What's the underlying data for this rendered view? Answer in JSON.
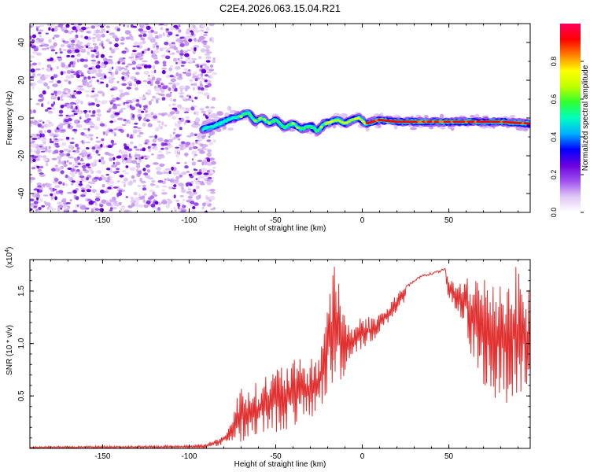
{
  "title": "C2E4.2026.063.15.04.R21",
  "chart_data": [
    {
      "type": "heatmap",
      "title": "C2E4.2026.063.15.04.R21",
      "xlabel": "Height of straight line (km)",
      "ylabel": "Frequency (Hz)",
      "xlim": [
        -192,
        97
      ],
      "ylim": [
        -50,
        50
      ],
      "xticks": [
        -150,
        -100,
        -50,
        0,
        50
      ],
      "yticks": [
        -40,
        -20,
        0,
        20,
        40
      ],
      "noise_region_x": [
        -192,
        -88
      ],
      "ridge": {
        "x": [
          -92,
          -85,
          -80,
          -75,
          -70,
          -66,
          -62,
          -58,
          -54,
          -50,
          -45,
          -40,
          -35,
          -30,
          -26,
          -22,
          -18,
          -14,
          -10,
          -6,
          -2,
          2,
          10,
          20,
          40,
          60,
          80,
          97
        ],
        "freq": [
          -6,
          -4,
          -2,
          0,
          1,
          3,
          -2,
          0,
          -3,
          -1,
          -5,
          -3,
          -6,
          -4,
          -7,
          -3,
          -2,
          -1,
          -3,
          -1,
          0,
          -3,
          -1,
          -2,
          -2,
          -2,
          -2,
          -3
        ]
      },
      "colorbar": {
        "label": "Normalized spectral amplitude",
        "range": [
          0,
          1
        ],
        "ticks": [
          "0.0",
          "0.2",
          "0.4",
          "0.6",
          "0.8"
        ],
        "colors": [
          "#ffffff",
          "#e0c8f5",
          "#a050f0",
          "#6a00e0",
          "#0000ff",
          "#00b0ff",
          "#00ffc0",
          "#30ff30",
          "#c0ff00",
          "#ffff00",
          "#ff8000",
          "#ff0000",
          "#ff0060"
        ]
      }
    },
    {
      "type": "line",
      "xlabel": "Height of straight line (km)",
      "ylabel": "SNR (10 * v/v)",
      "scale_label": "(x10",
      "scale_exp": "4",
      "scale_suffix": ")",
      "xlim": [
        -192,
        97
      ],
      "ylim": [
        0,
        1.8
      ],
      "xticks": [
        -150,
        -100,
        -50,
        0,
        50
      ],
      "yticks": [
        0.5,
        1.0,
        1.5
      ],
      "ytick_labels": [
        "0.5",
        "1.0",
        "1.5"
      ],
      "line_color": "#e03030",
      "series": [
        {
          "name": "SNR",
          "x": [
            -192,
            -100,
            -90,
            -82,
            -76,
            -70,
            -62,
            -55,
            -48,
            -40,
            -32,
            -25,
            -20,
            -15,
            -10,
            -5,
            0,
            5,
            10,
            15,
            20,
            25,
            30,
            35,
            40,
            45,
            48,
            50,
            52,
            55,
            60,
            65,
            70,
            75,
            80,
            85,
            90,
            97
          ],
          "max": [
            0.02,
            0.03,
            0.05,
            0.1,
            0.25,
            0.65,
            0.62,
            0.72,
            0.8,
            0.85,
            0.85,
            0.9,
            1.55,
            1.8,
            1.32,
            1.15,
            1.3,
            1.25,
            1.3,
            1.35,
            1.5,
            1.55,
            1.62,
            1.66,
            1.68,
            1.7,
            1.73,
            1.62,
            1.6,
            1.55,
            1.7,
            1.7,
            1.65,
            1.72,
            1.65,
            1.72,
            1.75,
            1.5
          ],
          "min": [
            0.0,
            0.0,
            0.0,
            0.03,
            0.06,
            0.05,
            0.1,
            0.15,
            0.15,
            0.2,
            0.25,
            0.35,
            0.5,
            0.55,
            0.7,
            0.9,
            0.95,
            1.0,
            1.1,
            1.2,
            1.3,
            1.4,
            1.5,
            1.55,
            1.58,
            1.62,
            1.6,
            1.4,
            1.35,
            1.25,
            1.1,
            0.7,
            0.6,
            0.45,
            0.4,
            0.45,
            0.5,
            0.55
          ]
        }
      ]
    }
  ]
}
